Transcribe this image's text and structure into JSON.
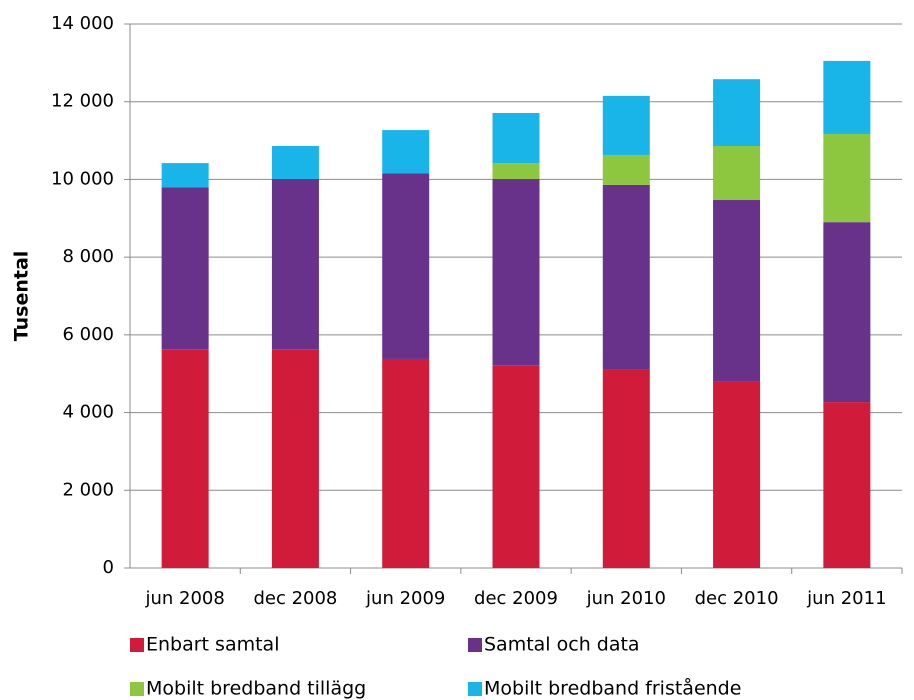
{
  "chart_data": {
    "type": "stacked_bar",
    "y_label": "Tusental",
    "categories": [
      "jun 2008",
      "dec 2008",
      "jun 2009",
      "dec 2009",
      "jun 2010",
      "dec 2010",
      "jun 2011"
    ],
    "series": [
      {
        "name": "Enbart samtal",
        "color": "#d01c3a",
        "values": [
          5630,
          5630,
          5380,
          5220,
          5120,
          4790,
          4270
        ]
      },
      {
        "name": "Samtal och data",
        "color": "#68318a",
        "values": [
          4170,
          4380,
          4780,
          4790,
          4740,
          4680,
          4630
        ]
      },
      {
        "name": "Mobilt bredband tillägg",
        "color": "#8dc63f",
        "values": [
          0,
          0,
          0,
          410,
          770,
          1390,
          2270
        ]
      },
      {
        "name": "Mobilt bredband fristående",
        "color": "#19b5e8",
        "values": [
          620,
          850,
          1110,
          1290,
          1520,
          1720,
          1880
        ]
      }
    ],
    "ylim": [
      0,
      14000
    ],
    "yticks": [
      0,
      {
        "value": 2000,
        "label": "2 000"
      },
      {
        "value": 4000,
        "label": "4 000"
      },
      {
        "value": 6000,
        "label": "6 000"
      },
      {
        "value": 8000,
        "label": "8 000"
      },
      {
        "value": 10000,
        "label": "10 000"
      },
      {
        "value": 12000,
        "label": "12 000"
      },
      {
        "value": 14000,
        "label": "14 000"
      }
    ],
    "grid": true
  }
}
